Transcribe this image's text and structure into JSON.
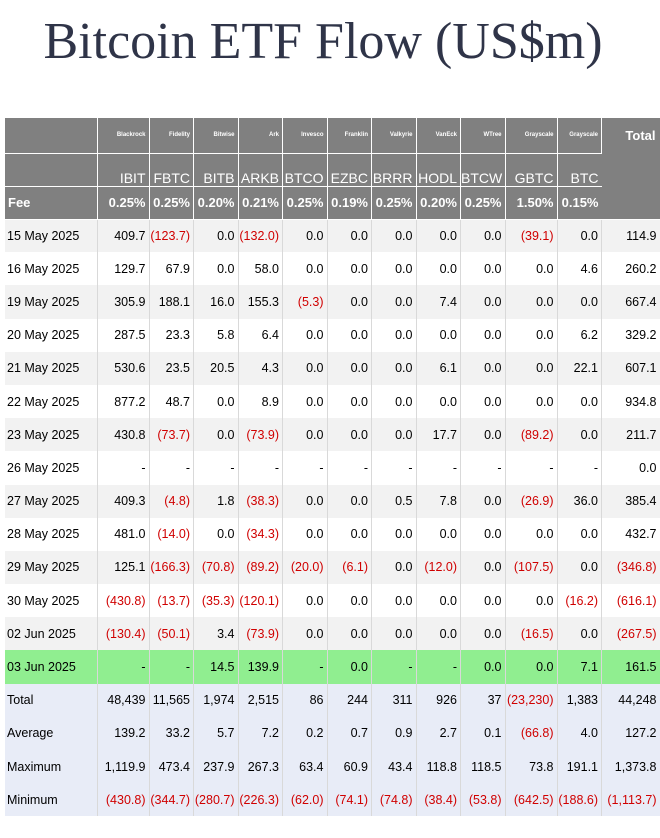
{
  "title": "Bitcoin ETF Flow (US$m)",
  "issuers": [
    "Blackrock",
    "Fidelity",
    "Bitwise",
    "Ark",
    "Invesco",
    "Franklin",
    "Valkyrie",
    "VanEck",
    "WTree",
    "Grayscale",
    "Grayscale"
  ],
  "total_label": "Total",
  "tickers": [
    "IBIT",
    "FBTC",
    "BITB",
    "ARKB",
    "BTCO",
    "EZBC",
    "BRRR",
    "HODL",
    "BTCW",
    "GBTC",
    "BTC"
  ],
  "fee_label": "Fee",
  "fees": [
    "0.25%",
    "0.25%",
    "0.20%",
    "0.21%",
    "0.25%",
    "0.19%",
    "0.25%",
    "0.20%",
    "0.25%",
    "1.50%",
    "0.15%"
  ],
  "rows": [
    {
      "date": "15 May 2025",
      "values": [
        "409.7",
        "(123.7)",
        "0.0",
        "(132.0)",
        "0.0",
        "0.0",
        "0.0",
        "0.0",
        "0.0",
        "(39.1)",
        "0.0"
      ],
      "total": "114.9"
    },
    {
      "date": "16 May 2025",
      "values": [
        "129.7",
        "67.9",
        "0.0",
        "58.0",
        "0.0",
        "0.0",
        "0.0",
        "0.0",
        "0.0",
        "0.0",
        "4.6"
      ],
      "total": "260.2"
    },
    {
      "date": "19 May 2025",
      "values": [
        "305.9",
        "188.1",
        "16.0",
        "155.3",
        "(5.3)",
        "0.0",
        "0.0",
        "7.4",
        "0.0",
        "0.0",
        "0.0"
      ],
      "total": "667.4"
    },
    {
      "date": "20 May 2025",
      "values": [
        "287.5",
        "23.3",
        "5.8",
        "6.4",
        "0.0",
        "0.0",
        "0.0",
        "0.0",
        "0.0",
        "0.0",
        "6.2"
      ],
      "total": "329.2"
    },
    {
      "date": "21 May 2025",
      "values": [
        "530.6",
        "23.5",
        "20.5",
        "4.3",
        "0.0",
        "0.0",
        "0.0",
        "6.1",
        "0.0",
        "0.0",
        "22.1"
      ],
      "total": "607.1"
    },
    {
      "date": "22 May 2025",
      "values": [
        "877.2",
        "48.7",
        "0.0",
        "8.9",
        "0.0",
        "0.0",
        "0.0",
        "0.0",
        "0.0",
        "0.0",
        "0.0"
      ],
      "total": "934.8"
    },
    {
      "date": "23 May 2025",
      "values": [
        "430.8",
        "(73.7)",
        "0.0",
        "(73.9)",
        "0.0",
        "0.0",
        "0.0",
        "17.7",
        "0.0",
        "(89.2)",
        "0.0"
      ],
      "total": "211.7"
    },
    {
      "date": "26 May 2025",
      "values": [
        "-",
        "-",
        "-",
        "-",
        "-",
        "-",
        "-",
        "-",
        "-",
        "-",
        "-"
      ],
      "total": "0.0"
    },
    {
      "date": "27 May 2025",
      "values": [
        "409.3",
        "(4.8)",
        "1.8",
        "(38.3)",
        "0.0",
        "0.0",
        "0.5",
        "7.8",
        "0.0",
        "(26.9)",
        "36.0"
      ],
      "total": "385.4"
    },
    {
      "date": "28 May 2025",
      "values": [
        "481.0",
        "(14.0)",
        "0.0",
        "(34.3)",
        "0.0",
        "0.0",
        "0.0",
        "0.0",
        "0.0",
        "0.0",
        "0.0"
      ],
      "total": "432.7"
    },
    {
      "date": "29 May 2025",
      "values": [
        "125.1",
        "(166.3)",
        "(70.8)",
        "(89.2)",
        "(20.0)",
        "(6.1)",
        "0.0",
        "(12.0)",
        "0.0",
        "(107.5)",
        "0.0"
      ],
      "total": "(346.8)"
    },
    {
      "date": "30 May 2025",
      "values": [
        "(430.8)",
        "(13.7)",
        "(35.3)",
        "(120.1)",
        "0.0",
        "0.0",
        "0.0",
        "0.0",
        "0.0",
        "0.0",
        "(16.2)"
      ],
      "total": "(616.1)"
    },
    {
      "date": "02 Jun 2025",
      "values": [
        "(130.4)",
        "(50.1)",
        "3.4",
        "(73.9)",
        "0.0",
        "0.0",
        "0.0",
        "0.0",
        "0.0",
        "(16.5)",
        "0.0"
      ],
      "total": "(267.5)"
    },
    {
      "date": "03 Jun 2025",
      "values": [
        "-",
        "-",
        "14.5",
        "139.9",
        "-",
        "0.0",
        "-",
        "-",
        "0.0",
        "0.0",
        "7.1"
      ],
      "total": "161.5",
      "highlight": true
    }
  ],
  "summary": [
    {
      "label": "Total",
      "values": [
        "48,439",
        "11,565",
        "1,974",
        "2,515",
        "86",
        "244",
        "311",
        "926",
        "37",
        "(23,230)",
        "1,383"
      ],
      "total": "44,248"
    },
    {
      "label": "Average",
      "values": [
        "139.2",
        "33.2",
        "5.7",
        "7.2",
        "0.2",
        "0.7",
        "0.9",
        "2.7",
        "0.1",
        "(66.8)",
        "4.0"
      ],
      "total": "127.2"
    },
    {
      "label": "Maximum",
      "values": [
        "1,119.9",
        "473.4",
        "237.9",
        "267.3",
        "63.4",
        "60.9",
        "43.4",
        "118.8",
        "118.5",
        "73.8",
        "191.1"
      ],
      "total": "1,373.8"
    },
    {
      "label": "Minimum",
      "values": [
        "(430.8)",
        "(344.7)",
        "(280.7)",
        "(226.3)",
        "(62.0)",
        "(74.1)",
        "(74.8)",
        "(38.4)",
        "(53.8)",
        "(642.5)",
        "(188.6)"
      ],
      "total": "(1,113.7)"
    }
  ],
  "colors": {
    "header_bg": "#808080",
    "negative": "#d00000",
    "highlight": "#90ee90",
    "summary_bg": "#e8ecf7",
    "title": "#2f3448"
  }
}
